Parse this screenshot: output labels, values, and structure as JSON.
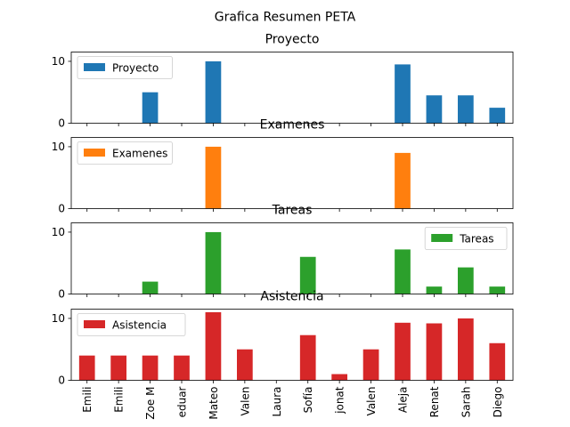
{
  "chart_data": {
    "type": "bar",
    "title": "Grafica Resumen PETA",
    "categories": [
      "Emili",
      "Emili",
      "Zoe M",
      "eduar",
      "Mateo",
      "Valen",
      "Laura",
      "Sofía",
      "jonat",
      "Valen",
      "Aleja",
      "Renat",
      "Sarah",
      "Diego"
    ],
    "xlabel": "",
    "ylabel": "",
    "ylim": [
      0,
      11.5
    ],
    "yticks": [
      0,
      10
    ],
    "subplots": [
      {
        "name": "Proyecto",
        "title": "Proyecto",
        "color": "#1f77b4",
        "legend_position": "upper-left",
        "values": [
          0,
          0,
          5.0,
          0,
          10.0,
          0,
          0,
          0,
          0,
          0,
          9.5,
          4.5,
          4.5,
          2.5
        ]
      },
      {
        "name": "Examenes",
        "title": "Examenes",
        "color": "#ff7f0e",
        "legend_position": "upper-left",
        "values": [
          0,
          0,
          0,
          0,
          10.0,
          0,
          0,
          0,
          0,
          0,
          9.0,
          0,
          0,
          0
        ]
      },
      {
        "name": "Tareas",
        "title": "Tareas",
        "color": "#2ca02c",
        "legend_position": "upper-right",
        "values": [
          0,
          0,
          2.0,
          0,
          10.0,
          0,
          0,
          6.0,
          0,
          0,
          7.2,
          1.2,
          4.3,
          1.2
        ]
      },
      {
        "name": "Asistencia",
        "title": "Asistencia",
        "color": "#d62728",
        "legend_position": "upper-left",
        "values": [
          4.0,
          4.0,
          4.0,
          4.0,
          11.0,
          5.0,
          0,
          7.3,
          1.0,
          5.0,
          9.3,
          9.2,
          10.0,
          6.0
        ]
      }
    ]
  }
}
